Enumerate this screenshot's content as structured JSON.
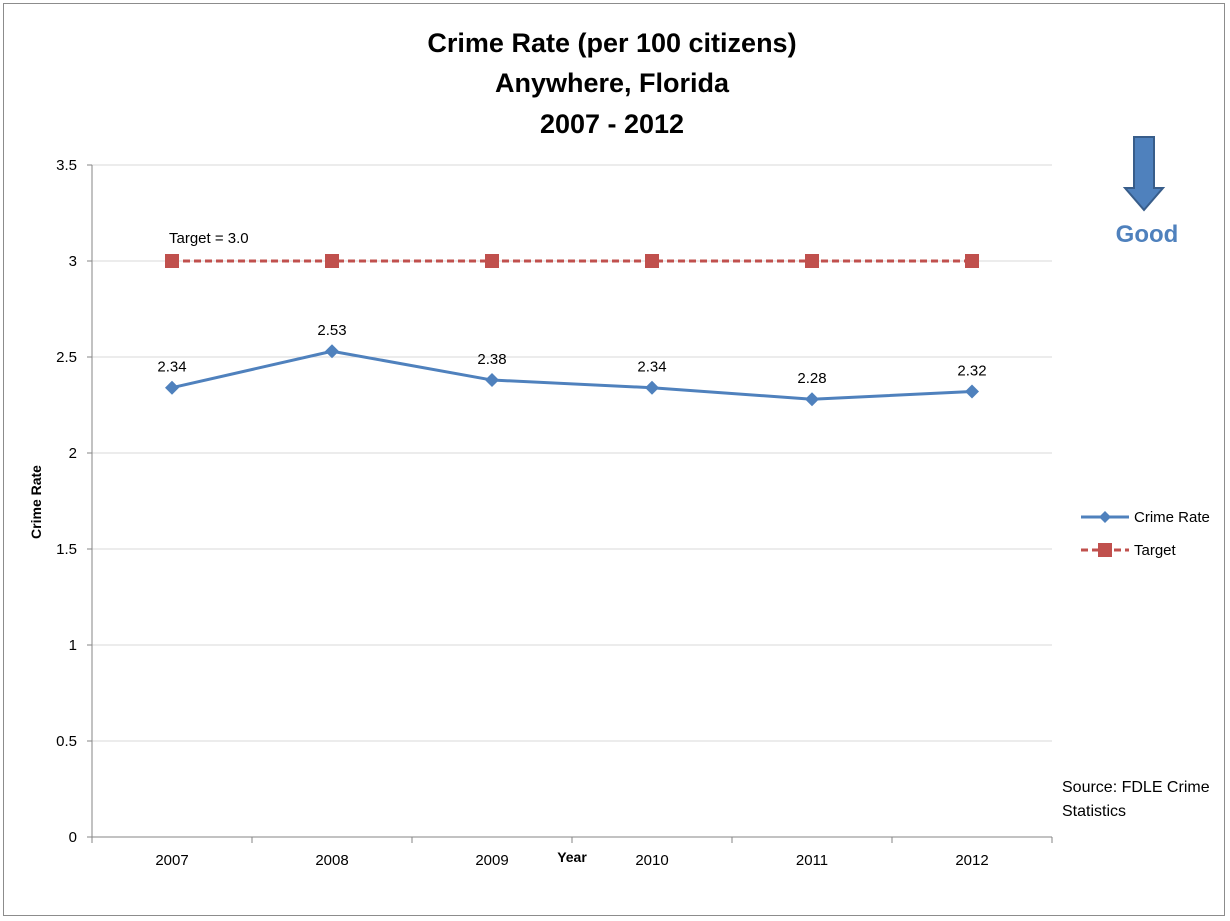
{
  "chart_data": {
    "type": "line",
    "title": [
      "Crime Rate (per 100 citizens)",
      "Anywhere, Florida",
      "2007 - 2012"
    ],
    "xlabel": "Year",
    "ylabel": "Crime Rate",
    "categories": [
      "2007",
      "2008",
      "2009",
      "2010",
      "2011",
      "2012"
    ],
    "ylim": [
      0,
      3.5
    ],
    "yticks": [
      0,
      0.5,
      1,
      1.5,
      2,
      2.5,
      3,
      3.5
    ],
    "ytick_labels": [
      "0",
      "0.5",
      "1",
      "1.5",
      "2",
      "2.5",
      "3",
      "3.5"
    ],
    "grid": true,
    "legend_position": "right",
    "series": [
      {
        "name": "Crime Rate",
        "values": [
          2.34,
          2.53,
          2.38,
          2.34,
          2.28,
          2.32
        ],
        "data_labels": [
          "2.34",
          "2.53",
          "2.38",
          "2.34",
          "2.28",
          "2.32"
        ],
        "color": "#4F81BD",
        "marker": "diamond",
        "line_style": "solid"
      },
      {
        "name": "Target",
        "values": [
          3,
          3,
          3,
          3,
          3,
          3
        ],
        "color": "#C0504D",
        "marker": "square",
        "line_style": "dashed"
      }
    ],
    "annotations": {
      "target_label": "Target = 3.0",
      "direction_label": "Good",
      "direction_icon": "down-arrow-icon",
      "direction_color": "#4F81BD",
      "source_lines": [
        "Source: FDLE Crime",
        "Statistics"
      ]
    }
  }
}
